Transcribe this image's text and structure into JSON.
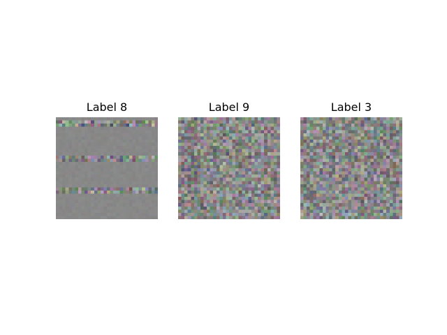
{
  "panels": [
    {
      "title": "Label 8",
      "pattern": "horizontal-stripes"
    },
    {
      "title": "Label 9",
      "pattern": "uniform-noise"
    },
    {
      "title": "Label 3",
      "pattern": "uniform-noise"
    }
  ],
  "colors": {
    "background": "#ffffff",
    "noise_base": "#888888"
  }
}
